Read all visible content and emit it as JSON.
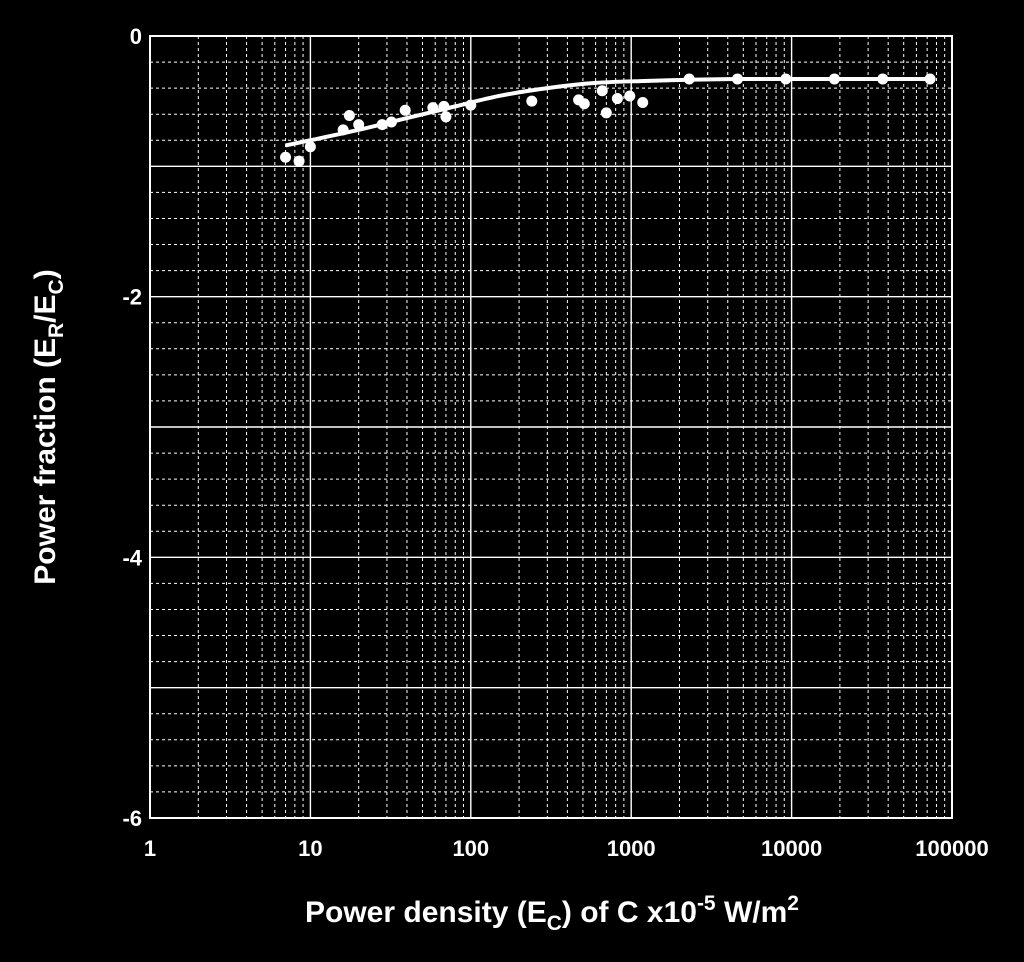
{
  "chart_data": {
    "type": "scatter",
    "x_scale": "log",
    "xlim": [
      1,
      100000
    ],
    "ylim": [
      -6,
      0
    ],
    "grid": true,
    "background_color": "#000000",
    "foreground_color": "#ffffff",
    "x_ticks": [
      1,
      10,
      100,
      1000,
      10000,
      100000
    ],
    "x_tick_labels": [
      "1",
      "10",
      "100",
      "1000",
      "10000",
      "100000"
    ],
    "y_ticks": [
      0,
      -2,
      -4,
      -6
    ],
    "y_tick_labels": [
      "0",
      "-2",
      "-4",
      "-6"
    ],
    "xlabel": {
      "prefix": "Power density (E",
      "sub": "C",
      "middle": ") of C x10",
      "sup1": "-5",
      "middle2": " W/m",
      "sup2": "2"
    },
    "ylabel": {
      "prefix": "Power fraction (E",
      "sub1": "R",
      "middle": "/E",
      "sub2": "C",
      "suffix": ")"
    },
    "series": [
      {
        "kind": "points",
        "x": [
          7,
          8.5,
          10,
          16,
          17.5,
          20,
          28,
          32,
          39,
          58,
          68,
          70,
          100,
          240,
          470,
          510,
          660,
          700,
          820,
          980,
          1180,
          2300,
          4600,
          9200,
          18500,
          37000,
          73000
        ],
        "y": [
          -0.93,
          -0.96,
          -0.85,
          -0.72,
          -0.61,
          -0.68,
          -0.68,
          -0.66,
          -0.57,
          -0.55,
          -0.54,
          -0.62,
          -0.53,
          -0.5,
          -0.49,
          -0.52,
          -0.42,
          -0.59,
          -0.48,
          -0.46,
          -0.51,
          -0.33,
          -0.33,
          -0.33,
          -0.33,
          -0.33,
          -0.33
        ]
      },
      {
        "kind": "line",
        "x": [
          7,
          10,
          20,
          40,
          80,
          150,
          300,
          600,
          1200,
          2500,
          5000,
          10000,
          30000,
          73000
        ],
        "y": [
          -0.84,
          -0.8,
          -0.72,
          -0.63,
          -0.54,
          -0.46,
          -0.4,
          -0.36,
          -0.345,
          -0.335,
          -0.33,
          -0.33,
          -0.33,
          -0.33
        ]
      }
    ]
  }
}
